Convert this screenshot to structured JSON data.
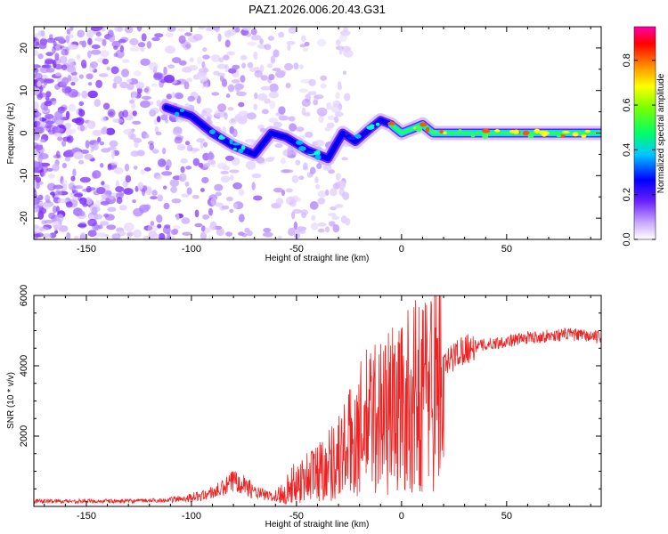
{
  "title": "PAZ1.2026.006.20.43.G31",
  "chart_data": [
    {
      "type": "heatmap",
      "name": "spectrogram",
      "xlabel": "Height of straight line (km)",
      "ylabel": "Frequency (Hz)",
      "xlim": [
        -175,
        95
      ],
      "ylim": [
        -25,
        25
      ],
      "xticks": [
        -150,
        -100,
        -50,
        0,
        50
      ],
      "yticks": [
        -20,
        -10,
        0,
        10,
        20
      ],
      "colorbar": {
        "label": "Normalized spectral amplitude",
        "range": [
          0,
          0.95
        ],
        "ticks": [
          0.0,
          0.2,
          0.4,
          0.6,
          0.8
        ]
      },
      "ridge": {
        "description_points_x": [
          -112,
          -100,
          -90,
          -80,
          -70,
          -62,
          -55,
          -45,
          -35,
          -28,
          -22,
          -15,
          -10,
          -5,
          0,
          5,
          10,
          15,
          20,
          30,
          50,
          70,
          95
        ],
        "description_points_y": [
          6,
          4,
          0,
          -3,
          -5,
          0,
          -1,
          -4,
          -6,
          0,
          -2,
          1,
          3,
          2,
          0,
          1,
          2,
          0,
          0,
          0,
          0,
          0,
          0
        ]
      }
    },
    {
      "type": "line",
      "name": "snr",
      "xlabel": "Height of straight line (km)",
      "ylabel": "SNR (10 * v/v)",
      "xlim": [
        -175,
        95
      ],
      "ylim": [
        0,
        6000
      ],
      "xticks": [
        -150,
        -100,
        -50,
        0,
        50
      ],
      "yticks": [
        2000,
        4000,
        6000
      ],
      "color": "#ee2222",
      "trend_x": [
        -175,
        -130,
        -110,
        -95,
        -85,
        -78,
        -70,
        -60,
        -50,
        -40,
        -30,
        -22,
        -15,
        -8,
        -2,
        5,
        10,
        15,
        20,
        25,
        30,
        40,
        50,
        60,
        70,
        80,
        95
      ],
      "trend_y": [
        150,
        150,
        180,
        300,
        500,
        800,
        400,
        250,
        700,
        1000,
        1400,
        2000,
        2500,
        2700,
        2800,
        3000,
        3300,
        3600,
        3900,
        4300,
        4500,
        4600,
        4700,
        4800,
        4850,
        4900,
        4800
      ]
    }
  ]
}
